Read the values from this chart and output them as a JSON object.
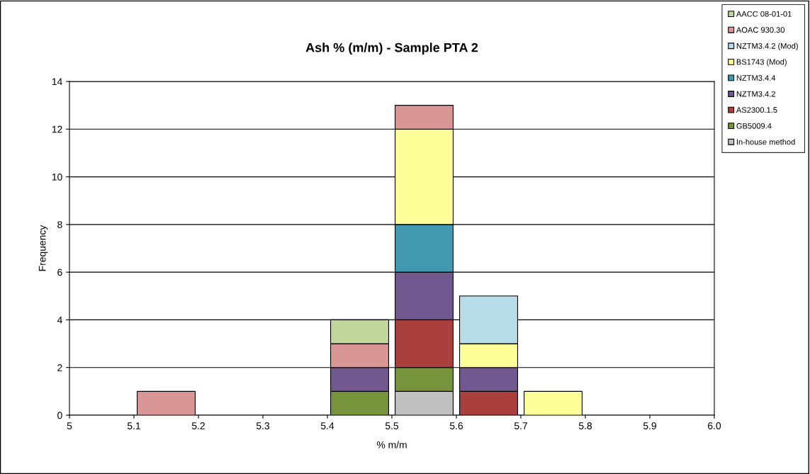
{
  "chart_data": {
    "type": "bar",
    "title": "Ash % (m/m) - Sample PTA 2",
    "xlabel": "% m/m",
    "ylabel": "Frequency",
    "x": [
      5.15,
      5.45,
      5.55,
      5.65,
      5.75
    ],
    "stacked": true,
    "series": [
      {
        "name": "In-house method",
        "color": "#c0c0c0",
        "values": [
          null,
          null,
          1,
          null,
          null
        ]
      },
      {
        "name": "GB5009.4",
        "color": "#77933c",
        "values": [
          null,
          1,
          1,
          null,
          null
        ]
      },
      {
        "name": "AS2300.1.5",
        "color": "#a9403e",
        "values": [
          null,
          null,
          2,
          1,
          null
        ]
      },
      {
        "name": "NZTM3.4.2",
        "color": "#71588f",
        "values": [
          null,
          1,
          2,
          1,
          null
        ]
      },
      {
        "name": "NZTM3.4.4",
        "color": "#4198af",
        "values": [
          null,
          null,
          2,
          null,
          null
        ]
      },
      {
        "name": "BS1743 (Mod)",
        "color": "#ffff99",
        "values": [
          null,
          null,
          4,
          1,
          1
        ]
      },
      {
        "name": "NZTM3.4.2 (Mod)",
        "color": "#b7dee8",
        "values": [
          null,
          null,
          null,
          2,
          null
        ]
      },
      {
        "name": "AOAC 930.30",
        "color": "#d99694",
        "values": [
          1,
          1,
          1,
          null,
          null
        ]
      },
      {
        "name": "AACC 08-01-01",
        "color": "#c3d69b",
        "values": [
          null,
          1,
          null,
          null,
          null
        ]
      }
    ],
    "xlim": [
      5,
      6.0
    ],
    "xticks": [
      5,
      5.1,
      5.2,
      5.3,
      5.4,
      5.5,
      5.6,
      5.7,
      5.8,
      5.9,
      {
        "value": 6.0,
        "label": "6.0"
      }
    ],
    "ylim": [
      0,
      14
    ],
    "yticks": [
      0,
      2,
      4,
      6,
      8,
      10,
      12,
      14
    ],
    "grid": "y",
    "legend": "top right"
  }
}
